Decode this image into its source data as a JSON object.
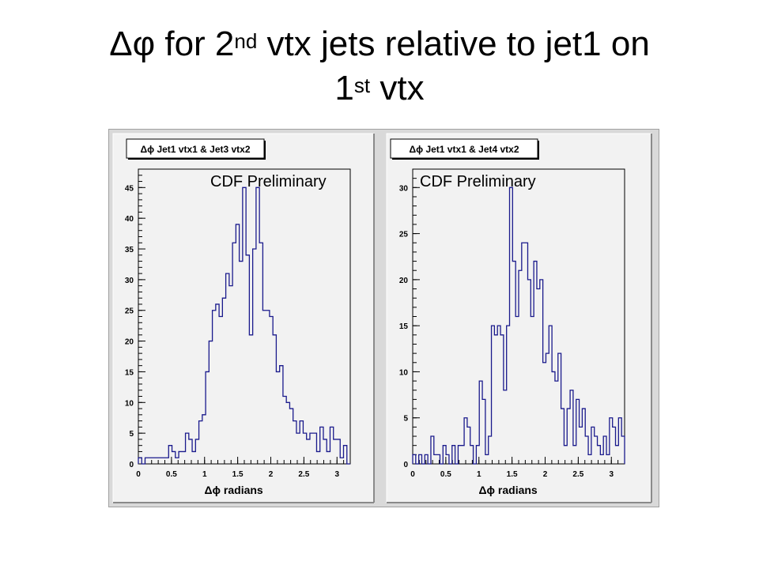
{
  "slide": {
    "title_pre": "Δφ for 2",
    "title_sup1": "nd",
    "title_mid": " vtx jets relative to jet1 on",
    "title_line2": "1",
    "title_sup2": "st",
    "title_post": " vtx"
  },
  "colors": {
    "histogram_line": "#1a1a8c",
    "pad_background": "#f2f2f2",
    "frame": "#000000"
  },
  "chart_data": [
    {
      "type": "bar",
      "title": "Δϕ Jet1 vtx1 & Jet3 vtx2",
      "annotation": "CDF Preliminary",
      "xlabel": "Δϕ radians",
      "ylabel": "",
      "xlim": [
        0,
        3.2
      ],
      "ylim": [
        0,
        48
      ],
      "xticks": [
        0,
        0.5,
        1,
        1.5,
        2,
        2.5,
        3
      ],
      "xtick_labels": [
        "0",
        "0.5",
        "1",
        "1.5",
        "2",
        "2.5",
        "3"
      ],
      "yticks": [
        0,
        5,
        10,
        15,
        20,
        25,
        30,
        35,
        40,
        45
      ],
      "ytick_labels": [
        "0",
        "5",
        "10",
        "15",
        "20",
        "25",
        "30",
        "35",
        "40",
        "45"
      ],
      "grid": false,
      "legend": "none",
      "bin_edges": [
        0,
        3.2
      ],
      "values": [
        1,
        0,
        1,
        1,
        1,
        1,
        1,
        1,
        1,
        3,
        2,
        1,
        2,
        2,
        5,
        4,
        2,
        4,
        7,
        8,
        15,
        20,
        25,
        26,
        24,
        27,
        31,
        29,
        36,
        39,
        33,
        45,
        34,
        21,
        35,
        45,
        36,
        25,
        25,
        24,
        21,
        15,
        16,
        11,
        10,
        9,
        7,
        5,
        7,
        5,
        4,
        5,
        5,
        2,
        6,
        4,
        2,
        6,
        4,
        4,
        1,
        3,
        0
      ],
      "style": "step"
    },
    {
      "type": "bar",
      "title": "Δϕ Jet1 vtx1 & Jet4 vtx2",
      "annotation": "CDF Preliminary",
      "xlabel": "Δϕ radians",
      "ylabel": "",
      "xlim": [
        0,
        3.2
      ],
      "ylim": [
        0,
        32
      ],
      "xticks": [
        0,
        0.5,
        1,
        1.5,
        2,
        2.5,
        3
      ],
      "xtick_labels": [
        "0",
        "0.5",
        "1",
        "1.5",
        "2",
        "2.5",
        "3"
      ],
      "yticks": [
        0,
        5,
        10,
        15,
        20,
        25,
        30
      ],
      "ytick_labels": [
        "0",
        "5",
        "10",
        "15",
        "20",
        "25",
        "30"
      ],
      "grid": false,
      "legend": "none",
      "bin_edges": [
        0,
        3.2
      ],
      "values": [
        1,
        0,
        1,
        0,
        1,
        0,
        3,
        1,
        1,
        0,
        2,
        1,
        0,
        2,
        0,
        2,
        2,
        5,
        4,
        2,
        0,
        2,
        9,
        7,
        1,
        3,
        15,
        14,
        15,
        14,
        8,
        15,
        30,
        22,
        16,
        21,
        24,
        24,
        20,
        16,
        22,
        19,
        20,
        11,
        12,
        15,
        10,
        9,
        12,
        6,
        2,
        6,
        8,
        2,
        7,
        4,
        6,
        3,
        1,
        4,
        3,
        2,
        1,
        3,
        1,
        5,
        4,
        2,
        5,
        3
      ]
    }
  ]
}
